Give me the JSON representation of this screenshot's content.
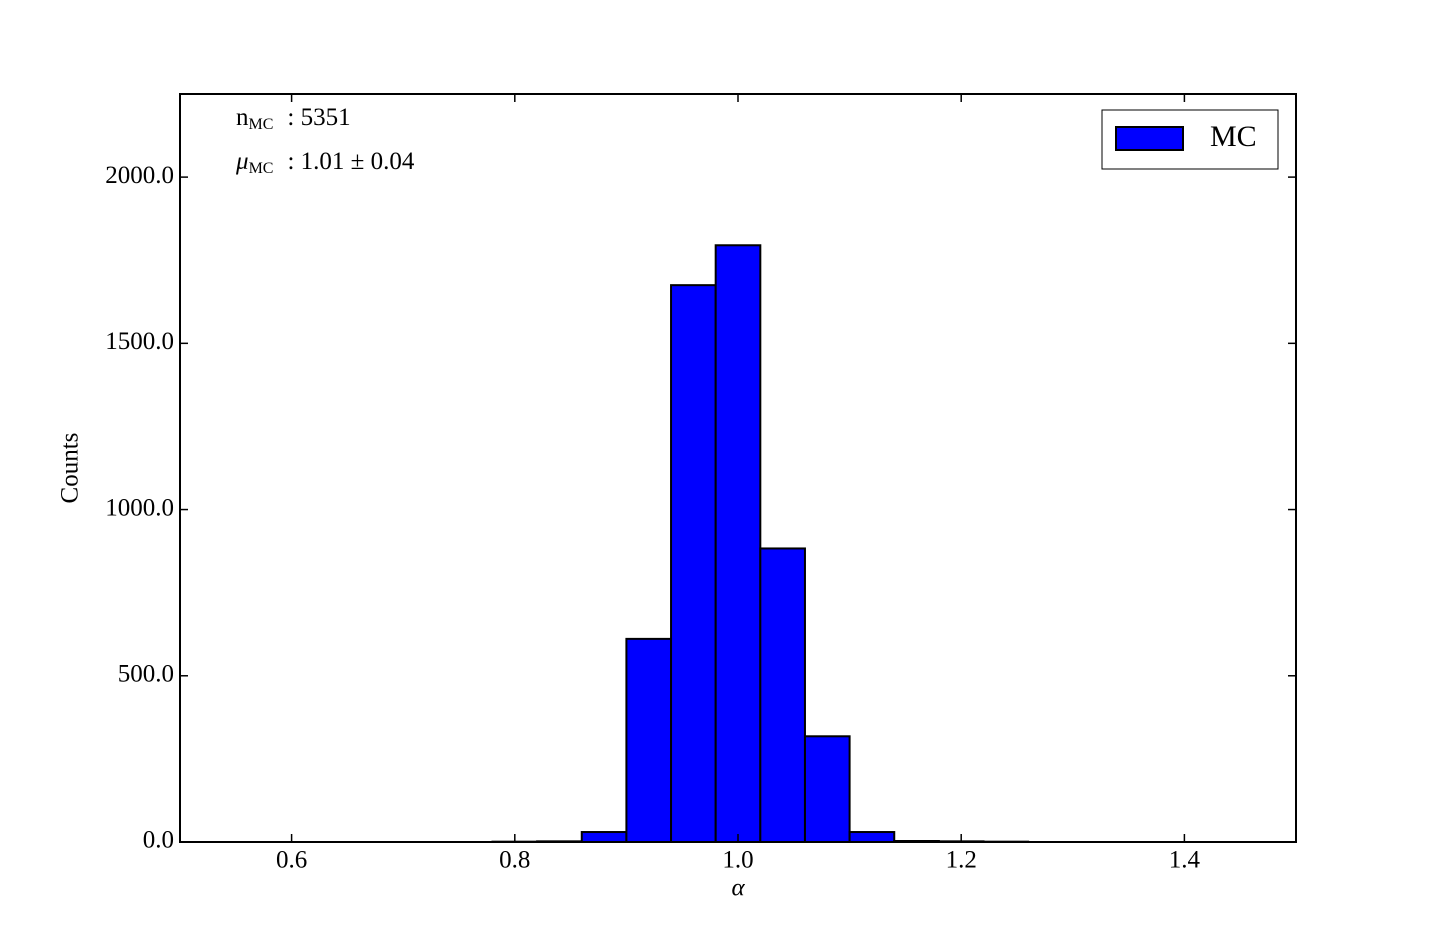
{
  "chart_data": {
    "type": "histogram",
    "xlabel": "α",
    "ylabel": "Counts",
    "bins": [
      0.78,
      0.82,
      0.86,
      0.9,
      0.94,
      0.98,
      1.02,
      1.06,
      1.1,
      1.14,
      1.18,
      1.22,
      1.26
    ],
    "series": [
      {
        "name": "MC",
        "color": "#0000ff",
        "values": [
          1,
          2,
          30,
          611,
          1675,
          1795,
          883,
          318,
          30,
          3,
          2,
          1
        ]
      }
    ],
    "xlim": [
      0.5,
      1.5
    ],
    "xticks": [
      0.6,
      0.8,
      {
        "value": 1.0,
        "label": "1.0"
      },
      1.2,
      1.4
    ],
    "ylim": [
      0,
      2250
    ],
    "yticks": [
      {
        "value": 0,
        "label": "0.0"
      },
      {
        "value": 500,
        "label": "500.0"
      },
      {
        "value": 1000,
        "label": "1000.0"
      },
      {
        "value": 1500,
        "label": "1500.0"
      },
      {
        "value": 2000,
        "label": "2000.0"
      }
    ],
    "legend": "upper right",
    "annotations": [
      {
        "symbol": "n",
        "subscript": "MC",
        "text": ": 5351"
      },
      {
        "symbol": "μ",
        "subscript": "MC",
        "text": ": 1.01 ± 0.04"
      }
    ]
  }
}
